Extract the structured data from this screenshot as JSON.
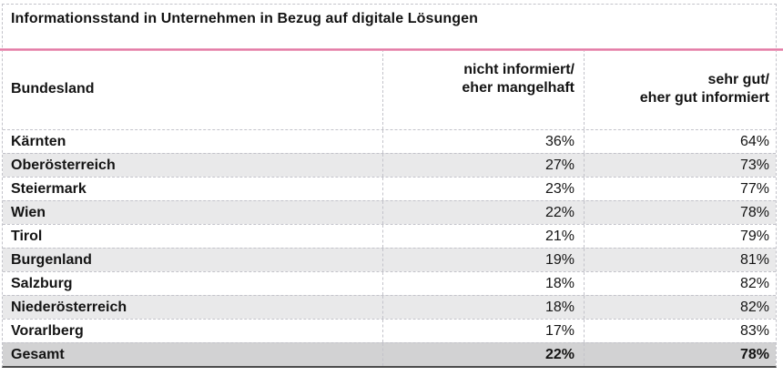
{
  "title": "Informationsstand in Unternehmen in Bezug auf digitale Lösungen",
  "table": {
    "columns": {
      "bundesland": "Bundesland",
      "not_informed": "nicht informiert/\neher mangelhaft",
      "well_informed": "sehr gut/\neher gut informiert"
    },
    "rows": [
      {
        "name": "Kärnten",
        "not_informed": "36%",
        "well_informed": "64%"
      },
      {
        "name": "Oberösterreich",
        "not_informed": "27%",
        "well_informed": "73%"
      },
      {
        "name": "Steiermark",
        "not_informed": "23%",
        "well_informed": "77%"
      },
      {
        "name": "Wien",
        "not_informed": "22%",
        "well_informed": "78%"
      },
      {
        "name": "Tirol",
        "not_informed": "21%",
        "well_informed": "79%"
      },
      {
        "name": "Burgenland",
        "not_informed": "19%",
        "well_informed": "81%"
      },
      {
        "name": "Salzburg",
        "not_informed": "18%",
        "well_informed": "82%"
      },
      {
        "name": "Niederösterreich",
        "not_informed": "18%",
        "well_informed": "82%"
      },
      {
        "name": "Vorarlberg",
        "not_informed": "17%",
        "well_informed": "83%"
      },
      {
        "name": "Gesamt",
        "not_informed": "22%",
        "well_informed": "78%"
      }
    ]
  },
  "colors": {
    "accent_pink": "#de6d9e",
    "border_gray": "#c3c3ca",
    "dark_border": "#4b4b4b",
    "stripe_gray": "#e9e9ea",
    "total_gray": "#d2d2d3"
  },
  "chart_data": {
    "type": "table",
    "title": "Informationsstand in Unternehmen in Bezug auf digitale Lösungen",
    "columns": [
      "Bundesland",
      "nicht informiert/ eher mangelhaft",
      "sehr gut/ eher gut informiert"
    ],
    "categories": [
      "Kärnten",
      "Oberösterreich",
      "Steiermark",
      "Wien",
      "Tirol",
      "Burgenland",
      "Salzburg",
      "Niederösterreich",
      "Vorarlberg",
      "Gesamt"
    ],
    "series": [
      {
        "name": "nicht informiert/ eher mangelhaft",
        "values": [
          36,
          27,
          23,
          22,
          21,
          19,
          18,
          18,
          17,
          22
        ]
      },
      {
        "name": "sehr gut/ eher gut informiert",
        "values": [
          64,
          73,
          77,
          78,
          79,
          81,
          82,
          82,
          83,
          78
        ]
      }
    ],
    "unit": "%",
    "layout": {
      "sorted_by": "nicht informiert/ eher mangelhaft descending",
      "total_row": "Gesamt",
      "zebra_stripes": true
    }
  }
}
